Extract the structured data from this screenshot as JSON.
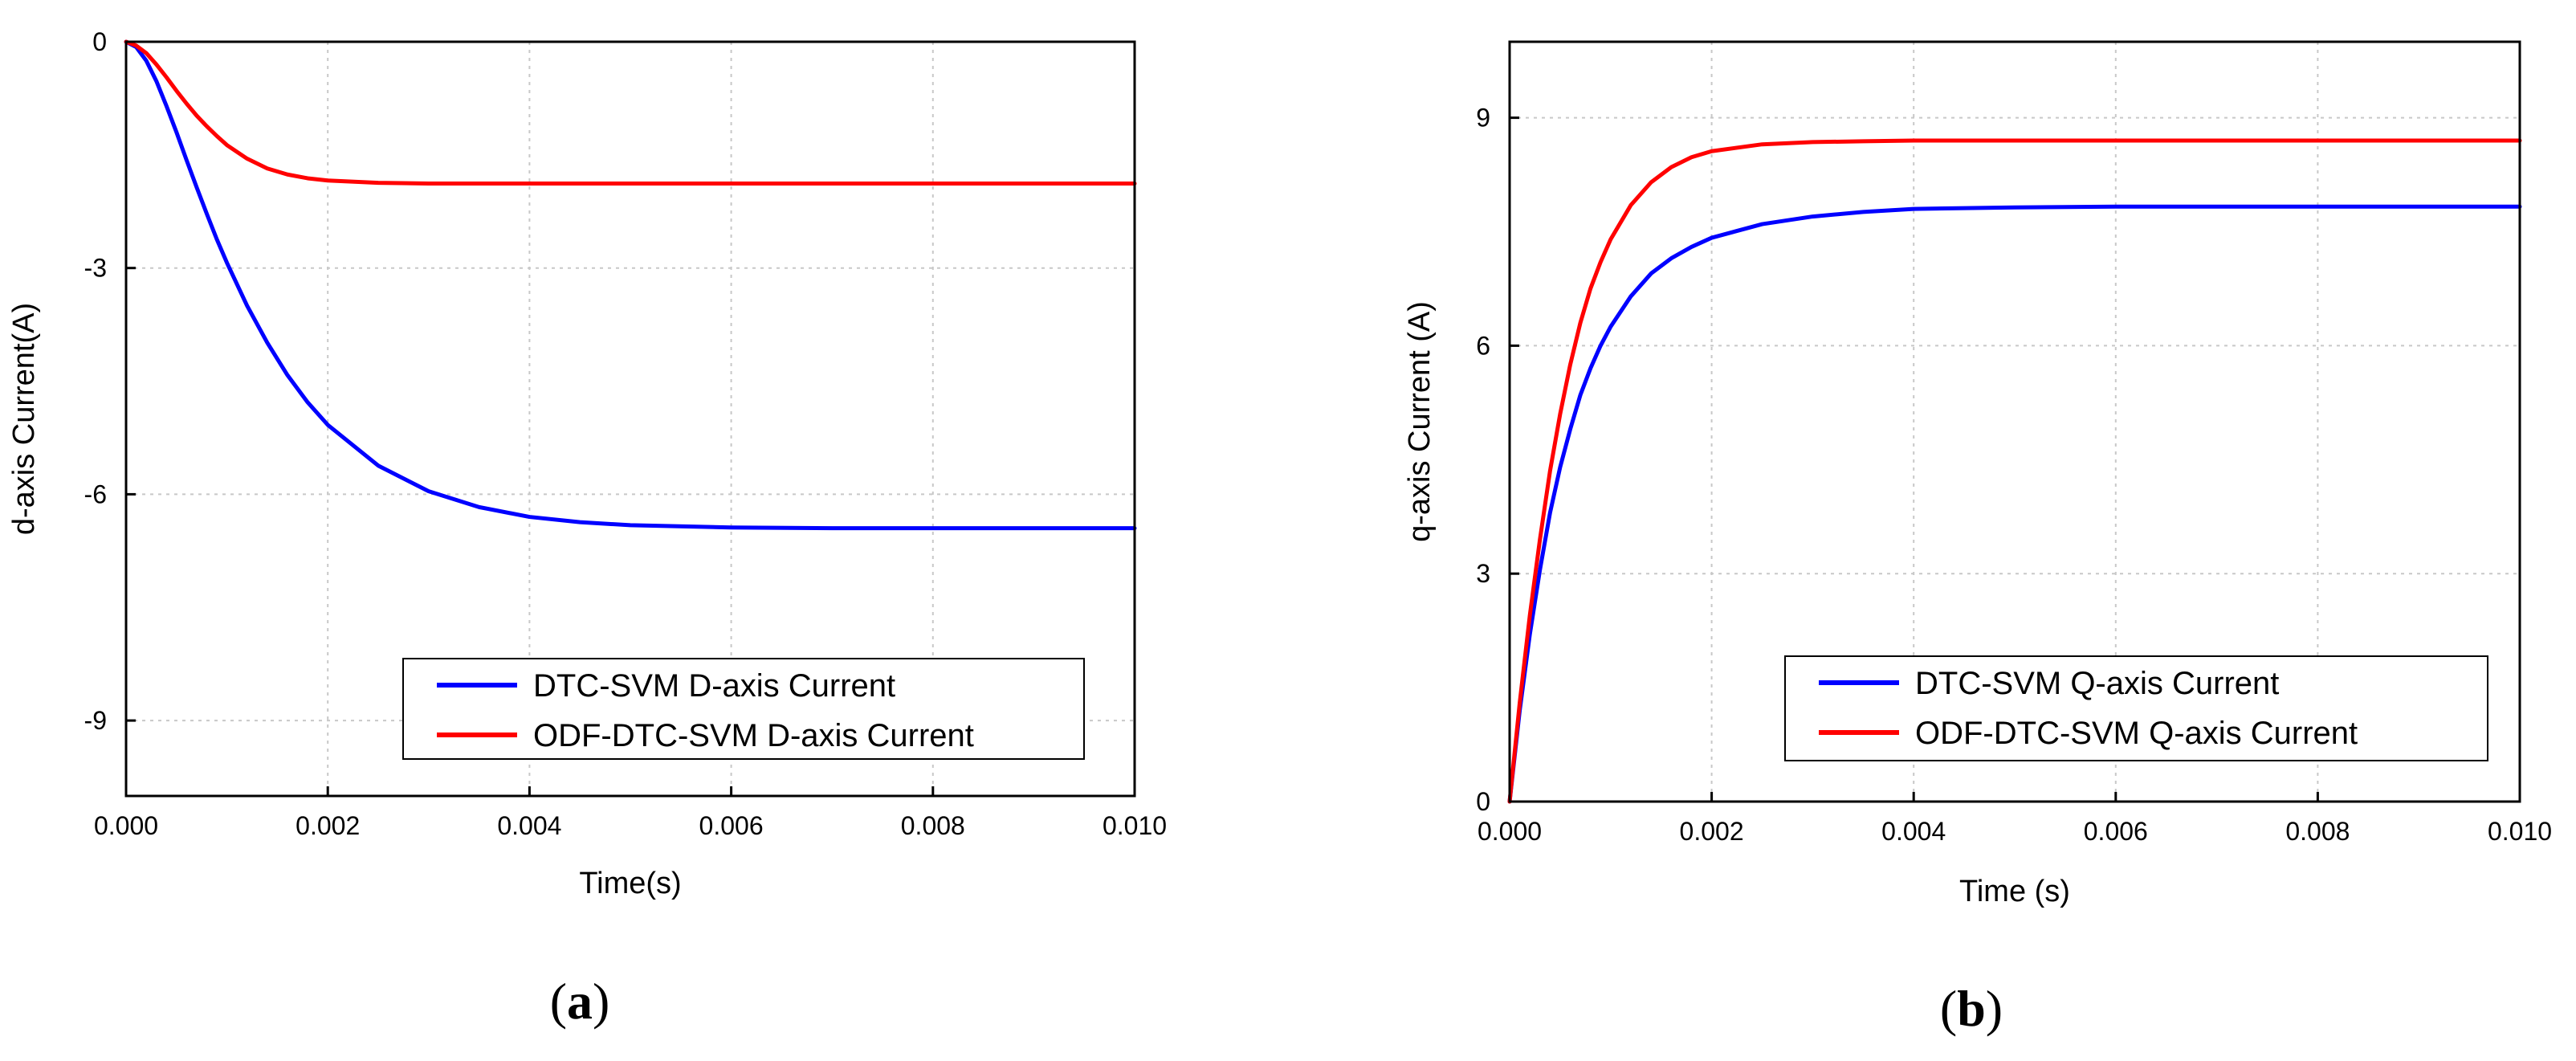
{
  "chart_data": [
    {
      "type": "line",
      "panel_label": "a",
      "xlabel": "Time(s)",
      "ylabel": "d-axis Current(A)",
      "xlim": [
        0,
        0.01
      ],
      "ylim": [
        -10,
        0
      ],
      "xticks": [
        "0.000",
        "0.002",
        "0.004",
        "0.006",
        "0.008",
        "0.010"
      ],
      "yticks": [
        "0",
        "-3",
        "-6",
        "-9"
      ],
      "ytick_values": [
        0,
        -3,
        -6,
        -9
      ],
      "grid": true,
      "legend_position": "bottom-right",
      "series": [
        {
          "name": "DTC-SVM D-axis Current",
          "color": "#0000ff",
          "x": [
            0,
            0.0001,
            0.0002,
            0.0003,
            0.0004,
            0.0005,
            0.0006,
            0.0007,
            0.0008,
            0.0009,
            0.001,
            0.0012,
            0.0014,
            0.0016,
            0.0018,
            0.002,
            0.0025,
            0.003,
            0.0035,
            0.004,
            0.0045,
            0.005,
            0.006,
            0.007,
            0.008,
            0.009,
            0.01
          ],
          "y": [
            0,
            -0.07,
            -0.25,
            -0.52,
            -0.85,
            -1.2,
            -1.57,
            -1.93,
            -2.28,
            -2.62,
            -2.93,
            -3.5,
            -3.99,
            -4.42,
            -4.78,
            -5.08,
            -5.62,
            -5.96,
            -6.17,
            -6.3,
            -6.37,
            -6.41,
            -6.44,
            -6.45,
            -6.45,
            -6.45,
            -6.45
          ]
        },
        {
          "name": "ODF-DTC-SVM D-axis Current",
          "color": "#ff0000",
          "x": [
            0,
            0.0001,
            0.0002,
            0.0003,
            0.0004,
            0.0005,
            0.0006,
            0.0007,
            0.0008,
            0.0009,
            0.001,
            0.0012,
            0.0014,
            0.0016,
            0.0018,
            0.002,
            0.0025,
            0.003,
            0.0035,
            0.004,
            0.005,
            0.006,
            0.007,
            0.008,
            0.009,
            0.01
          ],
          "y": [
            0,
            -0.05,
            -0.15,
            -0.3,
            -0.47,
            -0.65,
            -0.82,
            -0.98,
            -1.12,
            -1.25,
            -1.37,
            -1.55,
            -1.68,
            -1.76,
            -1.81,
            -1.84,
            -1.87,
            -1.88,
            -1.88,
            -1.88,
            -1.88,
            -1.88,
            -1.88,
            -1.88,
            -1.88,
            -1.88
          ]
        }
      ]
    },
    {
      "type": "line",
      "panel_label": "b",
      "xlabel": "Time (s)",
      "ylabel": "q-axis Current (A)",
      "xlim": [
        0,
        0.01
      ],
      "ylim": [
        0,
        10
      ],
      "xticks": [
        "0.000",
        "0.002",
        "0.004",
        "0.006",
        "0.008",
        "0.010"
      ],
      "yticks": [
        "0",
        "3",
        "6",
        "9"
      ],
      "ytick_values": [
        0,
        3,
        6,
        9
      ],
      "grid": true,
      "legend_position": "bottom-right",
      "series": [
        {
          "name": "DTC-SVM Q-axis Current",
          "color": "#0000ff",
          "x": [
            0,
            0.0001,
            0.0002,
            0.0003,
            0.0004,
            0.0005,
            0.0006,
            0.0007,
            0.0008,
            0.0009,
            0.001,
            0.0012,
            0.0014,
            0.0016,
            0.0018,
            0.002,
            0.0025,
            0.003,
            0.0035,
            0.004,
            0.005,
            0.006,
            0.007,
            0.008,
            0.009,
            0.01
          ],
          "y": [
            0,
            1.2,
            2.2,
            3.05,
            3.8,
            4.4,
            4.9,
            5.35,
            5.7,
            6.0,
            6.25,
            6.65,
            6.95,
            7.15,
            7.3,
            7.42,
            7.6,
            7.7,
            7.76,
            7.8,
            7.82,
            7.83,
            7.83,
            7.83,
            7.83,
            7.83
          ]
        },
        {
          "name": "ODF-DTC-SVM Q-axis Current",
          "color": "#ff0000",
          "x": [
            0,
            0.0001,
            0.0002,
            0.0003,
            0.0004,
            0.0005,
            0.0006,
            0.0007,
            0.0008,
            0.0009,
            0.001,
            0.0012,
            0.0014,
            0.0016,
            0.0018,
            0.002,
            0.0025,
            0.003,
            0.0035,
            0.004,
            0.005,
            0.006,
            0.007,
            0.008,
            0.009,
            0.01
          ],
          "y": [
            0,
            1.3,
            2.45,
            3.45,
            4.35,
            5.1,
            5.75,
            6.3,
            6.75,
            7.1,
            7.4,
            7.85,
            8.15,
            8.35,
            8.48,
            8.56,
            8.65,
            8.68,
            8.69,
            8.7,
            8.7,
            8.7,
            8.7,
            8.7,
            8.7,
            8.7
          ]
        }
      ]
    }
  ]
}
